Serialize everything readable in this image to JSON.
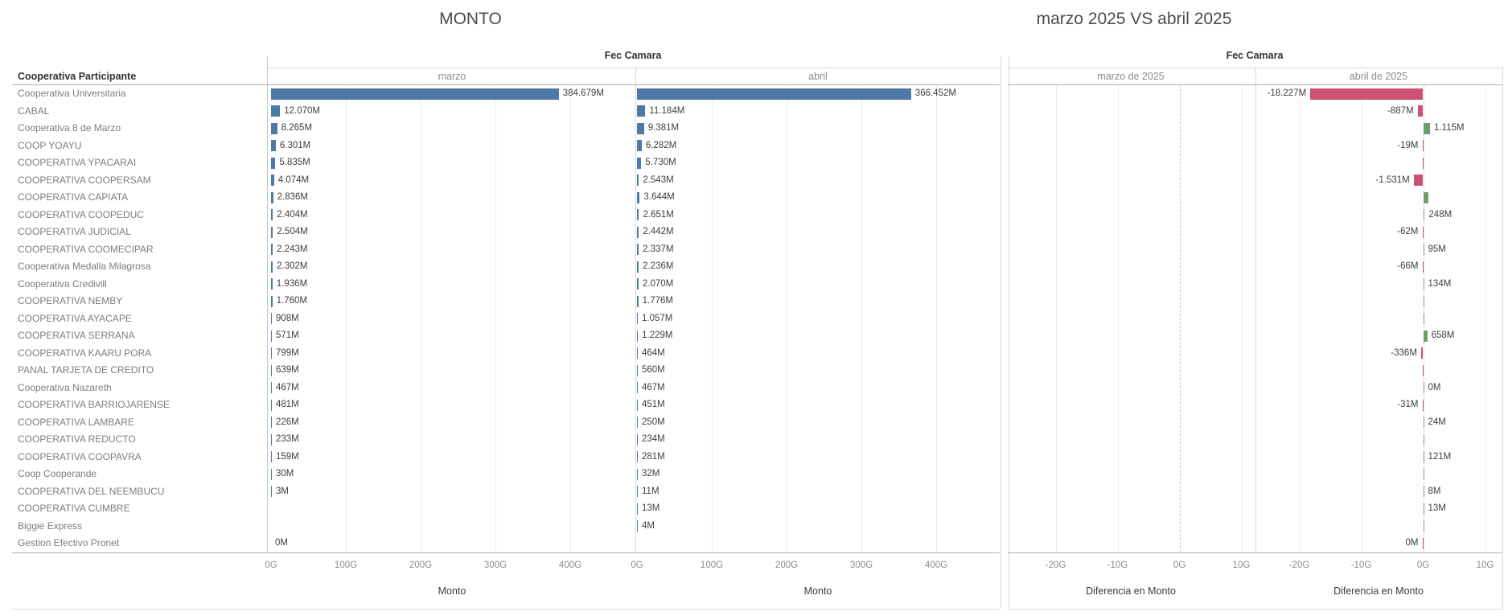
{
  "left_panel": {
    "title": "MONTO",
    "field_label": "Fec Camara",
    "row_header": "Cooperativa Participante",
    "columns": [
      {
        "label": "marzo"
      },
      {
        "label": "abril"
      }
    ],
    "axis": {
      "ticks": [
        "0G",
        "100G",
        "200G",
        "300G",
        "400G"
      ],
      "title": "Monto"
    }
  },
  "right_panel": {
    "title": "marzo 2025 VS abril 2025",
    "field_label": "Fec Camara",
    "columns": [
      {
        "label": "marzo de 2025"
      },
      {
        "label": "abril de 2025"
      }
    ],
    "axis": {
      "ticks": [
        "-20G",
        "-10G",
        "0G",
        "10G"
      ],
      "title": "Diferencia en Monto"
    }
  },
  "colors": {
    "bar_blue": "#4e79a7",
    "diff_negative_red": "#cc5174",
    "diff_positive_green": "#6aa06c"
  },
  "chart_data": {
    "type": "bar",
    "units": "M = millones (display), numeric values in G (thousands of millions)",
    "axis_monto": {
      "range_g": [
        0,
        400
      ],
      "ticks": [
        "0G",
        "100G",
        "200G",
        "300G",
        "400G"
      ],
      "title": "Monto"
    },
    "axis_diff": {
      "range_g": [
        -20,
        10
      ],
      "ticks": [
        "-20G",
        "-10G",
        "0G",
        "10G"
      ],
      "title": "Diferencia en Monto"
    },
    "rows": [
      {
        "name": "Cooperativa Universitaria",
        "marzo": "384.679M",
        "marzo_g": 384.679,
        "abril": "366.452M",
        "abril_g": 366.452,
        "diff": "-18.227M",
        "diff_g": -18.227,
        "diff_color": "red"
      },
      {
        "name": "CABAL",
        "marzo": "12.070M",
        "marzo_g": 12.07,
        "abril": "11.184M",
        "abril_g": 11.184,
        "diff": "-887M",
        "diff_g": -0.887,
        "diff_color": "red"
      },
      {
        "name": "Cooperativa 8 de Marzo",
        "marzo": "8.265M",
        "marzo_g": 8.265,
        "abril": "9.381M",
        "abril_g": 9.381,
        "diff": "1.115M",
        "diff_g": 1.115,
        "diff_color": "green"
      },
      {
        "name": "COOP YOAYU",
        "marzo": "6.301M",
        "marzo_g": 6.301,
        "abril": "6.282M",
        "abril_g": 6.282,
        "diff": "-19M",
        "diff_g": -0.019,
        "diff_color": "red"
      },
      {
        "name": "COOPERATIVA YPACARAI",
        "marzo": "5.835M",
        "marzo_g": 5.835,
        "abril": "5.730M",
        "abril_g": 5.73,
        "diff": null,
        "diff_g": -0.105,
        "diff_color": "red"
      },
      {
        "name": "COOPERATIVA COOPERSAM",
        "marzo": "4.074M",
        "marzo_g": 4.074,
        "abril": "2.543M",
        "abril_g": 2.543,
        "diff": "-1.531M",
        "diff_g": -1.531,
        "diff_color": "red"
      },
      {
        "name": "COOPERATIVA CAPIATA",
        "marzo": "2.836M",
        "marzo_g": 2.836,
        "abril": "3.644M",
        "abril_g": 3.644,
        "diff": null,
        "diff_g": 0.808,
        "diff_color": "green"
      },
      {
        "name": "COOPERATIVA COOPEDUC",
        "marzo": "2.404M",
        "marzo_g": 2.404,
        "abril": "2.651M",
        "abril_g": 2.651,
        "diff": "248M",
        "diff_g": 0.248,
        "diff_color": "green"
      },
      {
        "name": "COOPERATIVA JUDICIAL",
        "marzo": "2.504M",
        "marzo_g": 2.504,
        "abril": "2.442M",
        "abril_g": 2.442,
        "diff": "-62M",
        "diff_g": -0.062,
        "diff_color": "red"
      },
      {
        "name": "COOPERATIVA COOMECIPAR",
        "marzo": "2.243M",
        "marzo_g": 2.243,
        "abril": "2.337M",
        "abril_g": 2.337,
        "diff": "95M",
        "diff_g": 0.095,
        "diff_color": "green"
      },
      {
        "name": "Cooperativa Medalla Milagrosa",
        "marzo": "2.302M",
        "marzo_g": 2.302,
        "abril": "2.236M",
        "abril_g": 2.236,
        "diff": "-66M",
        "diff_g": -0.066,
        "diff_color": "red"
      },
      {
        "name": "Cooperativa Credivill",
        "marzo": "1.936M",
        "marzo_g": 1.936,
        "abril": "2.070M",
        "abril_g": 2.07,
        "diff": "134M",
        "diff_g": 0.134,
        "diff_color": "green"
      },
      {
        "name": "COOPERATIVA NEMBY",
        "marzo": "1.760M",
        "marzo_g": 1.76,
        "abril": "1.776M",
        "abril_g": 1.776,
        "diff": null,
        "diff_g": 0.016,
        "diff_color": "green"
      },
      {
        "name": "COOPERATIVA AYACAPE",
        "marzo": "908M",
        "marzo_g": 0.908,
        "abril": "1.057M",
        "abril_g": 1.057,
        "diff": null,
        "diff_g": 0.149,
        "diff_color": "green"
      },
      {
        "name": "COOPERATIVA SERRANA",
        "marzo": "571M",
        "marzo_g": 0.571,
        "abril": "1.229M",
        "abril_g": 1.229,
        "diff": "658M",
        "diff_g": 0.658,
        "diff_color": "green"
      },
      {
        "name": "COOPERATIVA KAARU PORA",
        "marzo": "799M",
        "marzo_g": 0.799,
        "abril": "464M",
        "abril_g": 0.464,
        "diff": "-336M",
        "diff_g": -0.336,
        "diff_color": "red"
      },
      {
        "name": "PANAL TARJETA DE CREDITO",
        "marzo": "639M",
        "marzo_g": 0.639,
        "abril": "560M",
        "abril_g": 0.56,
        "diff": null,
        "diff_g": -0.079,
        "diff_color": "red"
      },
      {
        "name": "Cooperativa Nazareth",
        "marzo": "467M",
        "marzo_g": 0.467,
        "abril": "467M",
        "abril_g": 0.467,
        "diff": "0M",
        "diff_g": 0,
        "diff_color": "green"
      },
      {
        "name": "COOPERATIVA BARRIOJARENSE",
        "marzo": "481M",
        "marzo_g": 0.481,
        "abril": "451M",
        "abril_g": 0.451,
        "diff": "-31M",
        "diff_g": -0.031,
        "diff_color": "red"
      },
      {
        "name": "COOPERATIVA LAMBARE",
        "marzo": "226M",
        "marzo_g": 0.226,
        "abril": "250M",
        "abril_g": 0.25,
        "diff": "24M",
        "diff_g": 0.024,
        "diff_color": "green"
      },
      {
        "name": "COOPERATIVA REDUCTO",
        "marzo": "233M",
        "marzo_g": 0.233,
        "abril": "234M",
        "abril_g": 0.234,
        "diff": null,
        "diff_g": 0.001,
        "diff_color": "green"
      },
      {
        "name": "COOPERATIVA COOPAVRA",
        "marzo": "159M",
        "marzo_g": 0.159,
        "abril": "281M",
        "abril_g": 0.281,
        "diff": "121M",
        "diff_g": 0.121,
        "diff_color": "green"
      },
      {
        "name": "Coop Cooperande",
        "marzo": "30M",
        "marzo_g": 0.03,
        "abril": "32M",
        "abril_g": 0.032,
        "diff": null,
        "diff_g": 0.002,
        "diff_color": "green"
      },
      {
        "name": "COOPERATIVA DEL NEEMBUCU",
        "marzo": "3M",
        "marzo_g": 0.003,
        "abril": "11M",
        "abril_g": 0.011,
        "diff": "8M",
        "diff_g": 0.008,
        "diff_color": "green"
      },
      {
        "name": "COOPERATIVA CUMBRE",
        "marzo": null,
        "marzo_g": null,
        "abril": "13M",
        "abril_g": 0.013,
        "diff": "13M",
        "diff_g": 0.013,
        "diff_color": "green"
      },
      {
        "name": "Biggie Express",
        "marzo": null,
        "marzo_g": null,
        "abril": "4M",
        "abril_g": 0.004,
        "diff": null,
        "diff_g": 0.004,
        "diff_color": "green"
      },
      {
        "name": "Gestion Efectivo Pronet",
        "marzo": "0M",
        "marzo_g": 0,
        "abril": null,
        "abril_g": null,
        "diff": "0M",
        "diff_g": 0,
        "diff_color": "red"
      }
    ]
  }
}
